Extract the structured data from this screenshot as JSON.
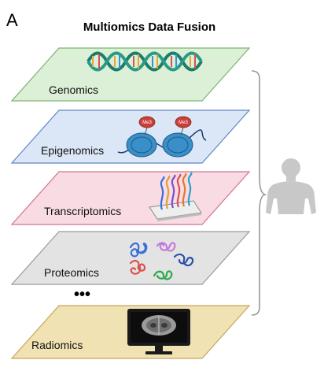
{
  "panel_letter": "A",
  "title": "Multiomics Data Fusion",
  "layers": [
    {
      "label": "Genomics",
      "fill": "#dcefd7",
      "stroke": "#7cb46f",
      "icon": "dna-double-helix-icon"
    },
    {
      "label": "Epigenomics",
      "fill": "#dbe7f6",
      "stroke": "#5f86c4",
      "icon": "nucleosome-methylation-icon"
    },
    {
      "label": "Transcriptomics",
      "fill": "#f9dbe4",
      "stroke": "#d2738f",
      "icon": "rna-microarray-icon"
    },
    {
      "label": "Proteomics",
      "fill": "#e3e3e3",
      "stroke": "#9a9a9a",
      "icon": "protein-folds-icon"
    },
    {
      "label": "Radiomics",
      "fill": "#f1e2b4",
      "stroke": "#c6a55a",
      "icon": "brain-scan-monitor-icon"
    }
  ],
  "ellipsis": "•••",
  "methyl_tag": "Me3",
  "bracket_color": "#999999",
  "person_color": "#c8c8c8",
  "person_icon": "human-body-icon"
}
